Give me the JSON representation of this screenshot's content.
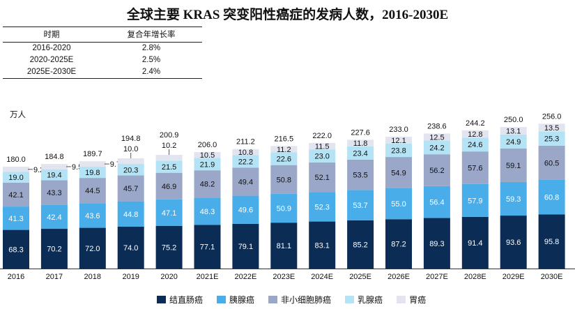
{
  "title": "全球主要 KRAS 突变阳性癌症的发病人数，2016-2030E",
  "cagr_table": {
    "headers": [
      "时期",
      "复合年增长率"
    ],
    "rows": [
      {
        "period": "2016-2020",
        "cagr": "2.8%"
      },
      {
        "period": "2020-2025E",
        "cagr": "2.5%"
      },
      {
        "period": "2025E-2030E",
        "cagr": "2.4%"
      }
    ]
  },
  "chart_data": {
    "type": "stacked_bar",
    "ylabel": "万人",
    "ylim": [
      0,
      265
    ],
    "categories": [
      "2016",
      "2017",
      "2018",
      "2019",
      "2020",
      "2021E",
      "2022E",
      "2023E",
      "2024E",
      "2025E",
      "2026E",
      "2027E",
      "2028E",
      "2029E",
      "2030E"
    ],
    "totals": [
      "180.0",
      "184.8",
      "189.7",
      "194.8",
      "200.9",
      "206.0",
      "211.2",
      "216.5",
      "222.0",
      "227.6",
      "233.0",
      "238.6",
      "244.2",
      "250.0",
      "256.0"
    ],
    "series": [
      {
        "name": "结直肠癌",
        "color": "#0b2d55",
        "label_color": "#ffffff",
        "values": [
          68.3,
          70.2,
          72.0,
          74.0,
          75.2,
          77.1,
          79.1,
          81.1,
          83.1,
          85.2,
          87.2,
          89.3,
          91.4,
          93.6,
          95.8
        ]
      },
      {
        "name": "胰腺癌",
        "color": "#49ade9",
        "label_color": "#ffffff",
        "values": [
          41.3,
          42.4,
          43.6,
          44.8,
          47.1,
          48.3,
          49.6,
          50.9,
          52.3,
          53.7,
          55.0,
          56.4,
          57.9,
          59.3,
          60.8
        ]
      },
      {
        "name": "非小细胞肺癌",
        "color": "#9aa7c8",
        "label_color": "#111111",
        "values": [
          42.1,
          43.3,
          44.5,
          45.7,
          46.9,
          48.2,
          49.4,
          50.8,
          52.1,
          53.5,
          54.9,
          56.2,
          57.6,
          59.1,
          60.5
        ]
      },
      {
        "name": "乳腺癌",
        "color": "#b3e3f5",
        "label_color": "#111111",
        "values": [
          19.0,
          19.4,
          19.8,
          20.3,
          21.5,
          21.9,
          22.2,
          22.6,
          23.0,
          23.4,
          23.8,
          24.2,
          24.6,
          24.9,
          25.3
        ]
      },
      {
        "name": "胃癌",
        "color": "#e2e4f0",
        "label_color": "#111111",
        "values": [
          9.2,
          9.5,
          9.7,
          10.0,
          10.2,
          10.5,
          10.8,
          11.2,
          11.5,
          11.8,
          12.1,
          12.5,
          12.8,
          13.1,
          13.5
        ]
      }
    ]
  }
}
